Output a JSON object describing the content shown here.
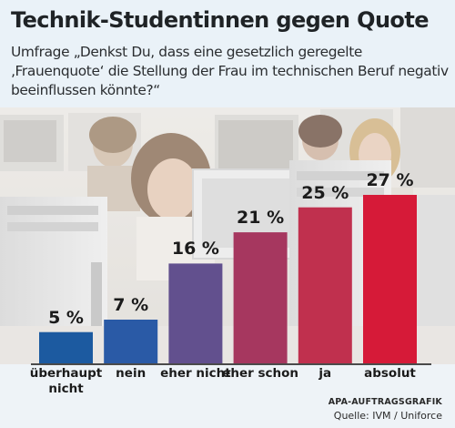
{
  "title": "Technik-Studentinnen gegen Quote",
  "subtitle": "Umfrage „Denkst Du, dass eine gesetzlich geregelte ‚Frauenquote‘ die Stellung der Frau im technischen Beruf negativ beeinflussen könnte?“",
  "chart_data": {
    "type": "bar",
    "categories": [
      "überhaupt nicht",
      "nein",
      "eher nicht",
      "eher schon",
      "ja",
      "absolut"
    ],
    "values": [
      5,
      7,
      16,
      21,
      25,
      27
    ],
    "value_labels": [
      "5 %",
      "7 %",
      "16 %",
      "21 %",
      "25 %",
      "27 %"
    ],
    "unit": "%",
    "colors": [
      "#1c5aa0",
      "#2a5aa6",
      "#62508e",
      "#a6375f",
      "#c0304e",
      "#d61a38"
    ],
    "ylim": [
      0,
      27
    ],
    "grid": false,
    "legend": "none"
  },
  "credits": {
    "agency": "APA-AUFTRAGSGRAFIK",
    "source": "Quelle: IVM / Uniforce"
  },
  "background_image": "photo-computer-lab-students"
}
